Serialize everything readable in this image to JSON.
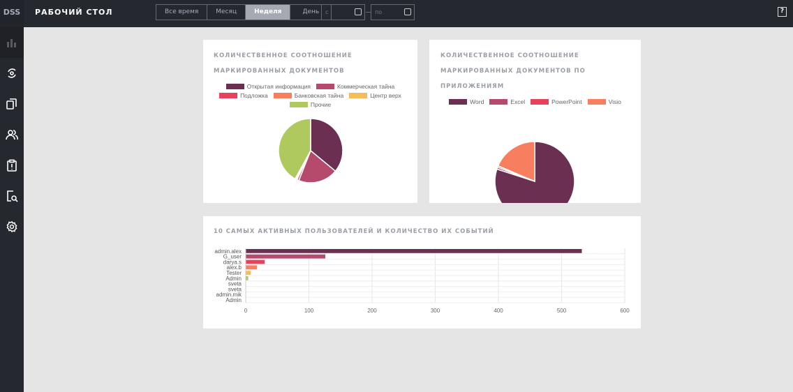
{
  "header": {
    "logo": "DSS",
    "title": "РАБОЧИЙ СТОЛ",
    "periods": [
      "Все время",
      "Месяц",
      "Неделя",
      "День"
    ],
    "active_period": "Неделя",
    "date_from_placeholder": "с",
    "date_to_placeholder": "по",
    "help": "?"
  },
  "sidebar": {
    "items": [
      "dashboard-icon",
      "sync-icon",
      "documents-icon",
      "users-icon",
      "clipboard-icon",
      "search-document-icon",
      "settings-icon"
    ]
  },
  "chart_data": [
    {
      "type": "pie",
      "title": "КОЛИЧЕСТВЕННОЕ СООТНОШЕНИЕ МАРКИРОВАННЫХ ДОКУМЕНТОВ",
      "labels": [
        "Открытая информация",
        "Коммерческая тайна",
        "Подложка",
        "Банковская тайна",
        "Центр верх",
        "Прочие"
      ],
      "values": [
        36,
        20,
        1,
        0.5,
        0.5,
        42
      ],
      "colors": [
        "#6b2f52",
        "#b54a6c",
        "#e8415c",
        "#f77e5e",
        "#f5bd5a",
        "#b0c95f"
      ],
      "legend": "top"
    },
    {
      "type": "pie",
      "title": "КОЛИЧЕСТВЕННОЕ СООТНОШЕНИЕ МАРКИРОВАННЫХ ДОКУМЕНТОВ ПО ПРИЛОЖЕНИЯМ",
      "labels": [
        "Word",
        "Excel",
        "PowerPoint",
        "Visio"
      ],
      "values": [
        80,
        0.8,
        0.6,
        18.6
      ],
      "colors": [
        "#6b2f52",
        "#b54a6c",
        "#e8415c",
        "#f77e5e"
      ],
      "legend": "top"
    },
    {
      "type": "bar",
      "orientation": "horizontal",
      "title": "10 САМЫХ АКТИВНЫХ ПОЛЬЗОВАТЕЛЕЙ И КОЛИЧЕСТВО ИХ СОБЫТИЙ",
      "categories": [
        "admin.alex",
        "G_user",
        "darya.s",
        "alex.b",
        "Tester",
        "Admin",
        "sveta",
        "sveta",
        "admin.mik",
        "Admin"
      ],
      "values": [
        532,
        126,
        30,
        18,
        8,
        4,
        0,
        0,
        0,
        0
      ],
      "colors": [
        "#6b2f52",
        "#b54a6c",
        "#e8415c",
        "#f77e5e",
        "#f5bd5a",
        "#b0c95f",
        "#6b2f52",
        "#6b2f52",
        "#6b2f52",
        "#6b2f52"
      ],
      "xlim": [
        0,
        600
      ],
      "xticks": [
        "0",
        "100",
        "200",
        "300",
        "400",
        "500",
        "600"
      ],
      "grid": true
    }
  ]
}
